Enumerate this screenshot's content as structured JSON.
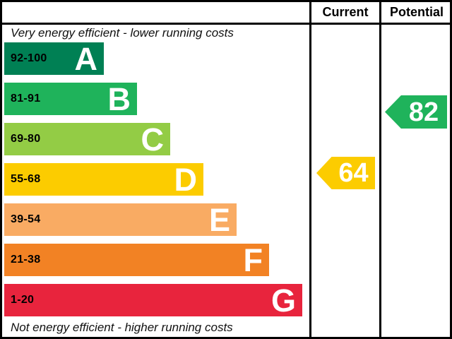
{
  "header": {
    "current": "Current",
    "potential": "Potential"
  },
  "captions": {
    "top": "Very energy efficient - lower running costs",
    "bottom": "Not energy efficient - higher running costs"
  },
  "chart_data": {
    "type": "bar",
    "subtype": "energy-efficiency-rating",
    "bands": [
      {
        "letter": "A",
        "range": "92-100",
        "min": 92,
        "max": 100,
        "color": "#008054"
      },
      {
        "letter": "B",
        "range": "81-91",
        "min": 81,
        "max": 91,
        "color": "#1fb35b"
      },
      {
        "letter": "C",
        "range": "69-80",
        "min": 69,
        "max": 80,
        "color": "#93cc45"
      },
      {
        "letter": "D",
        "range": "55-68",
        "min": 55,
        "max": 68,
        "color": "#fccc00"
      },
      {
        "letter": "E",
        "range": "39-54",
        "min": 39,
        "max": 54,
        "color": "#f9ab63"
      },
      {
        "letter": "F",
        "range": "21-38",
        "min": 21,
        "max": 38,
        "color": "#f28224"
      },
      {
        "letter": "G",
        "range": "1-20",
        "min": 1,
        "max": 20,
        "color": "#e8243d"
      }
    ],
    "current": {
      "value": "64",
      "band": "D",
      "color": "#fccc00"
    },
    "potential": {
      "value": "82",
      "band": "B",
      "color": "#1fb35b"
    }
  }
}
